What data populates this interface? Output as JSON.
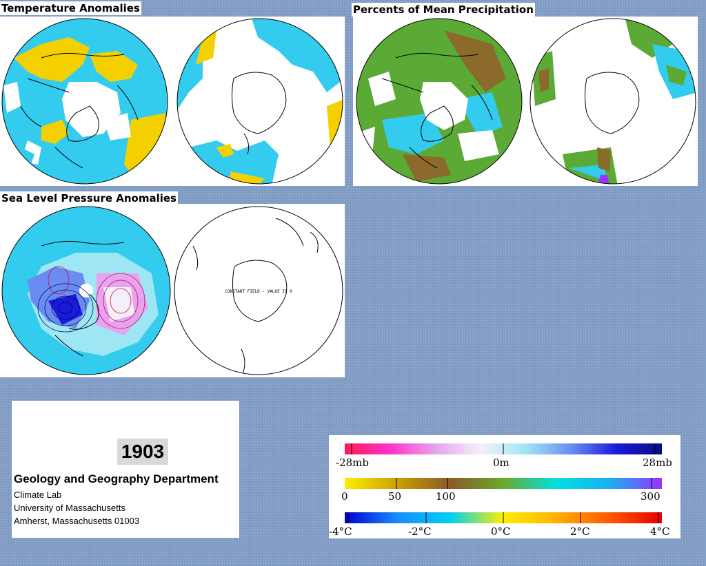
{
  "panels": {
    "temperature": {
      "title": "Temperature Anomalies"
    },
    "precipitation": {
      "title": "Percents of Mean Precipitation"
    },
    "pressure": {
      "title": "Sea Level Pressure Anomalies",
      "south_note": "CONSTANT FIELD - VALUE IS 0"
    }
  },
  "info": {
    "year": "1903",
    "department": "Geology and Geography Department",
    "lines": [
      "Climate Lab",
      "University of Massachusetts",
      "Amherst, Massachusetts 01003"
    ]
  },
  "legends": {
    "pressure": {
      "labels": [
        "-28mb",
        "0m",
        "28mb"
      ],
      "colors": [
        "#ff1a55",
        "#ff33cc",
        "#e6a3ee",
        "#f5f0f8",
        "#9fe6f5",
        "#6a8cf0",
        "#1a1ad9",
        "#0a0a80"
      ]
    },
    "precipitation": {
      "labels": [
        "0",
        "50",
        "100",
        "300"
      ],
      "colors": [
        "#ffee00",
        "#c8a000",
        "#8b5a2b",
        "#6aaa2a",
        "#00e0e0",
        "#1ab0f0",
        "#9933ff"
      ]
    },
    "temperature": {
      "labels": [
        "-4°C",
        "-2°C",
        "0°C",
        "2°C",
        "4°C"
      ],
      "colors": [
        "#0000cc",
        "#1a8cff",
        "#00d0f0",
        "#ffee00",
        "#ffb000",
        "#ff5a00",
        "#e60000"
      ]
    }
  },
  "colors": {
    "background": "#7f9bc4",
    "anomaly_cyan": "#33ccee",
    "anomaly_yellow": "#f5d000",
    "precip_green": "#5aaa35",
    "precip_brown": "#8b6a2b"
  }
}
